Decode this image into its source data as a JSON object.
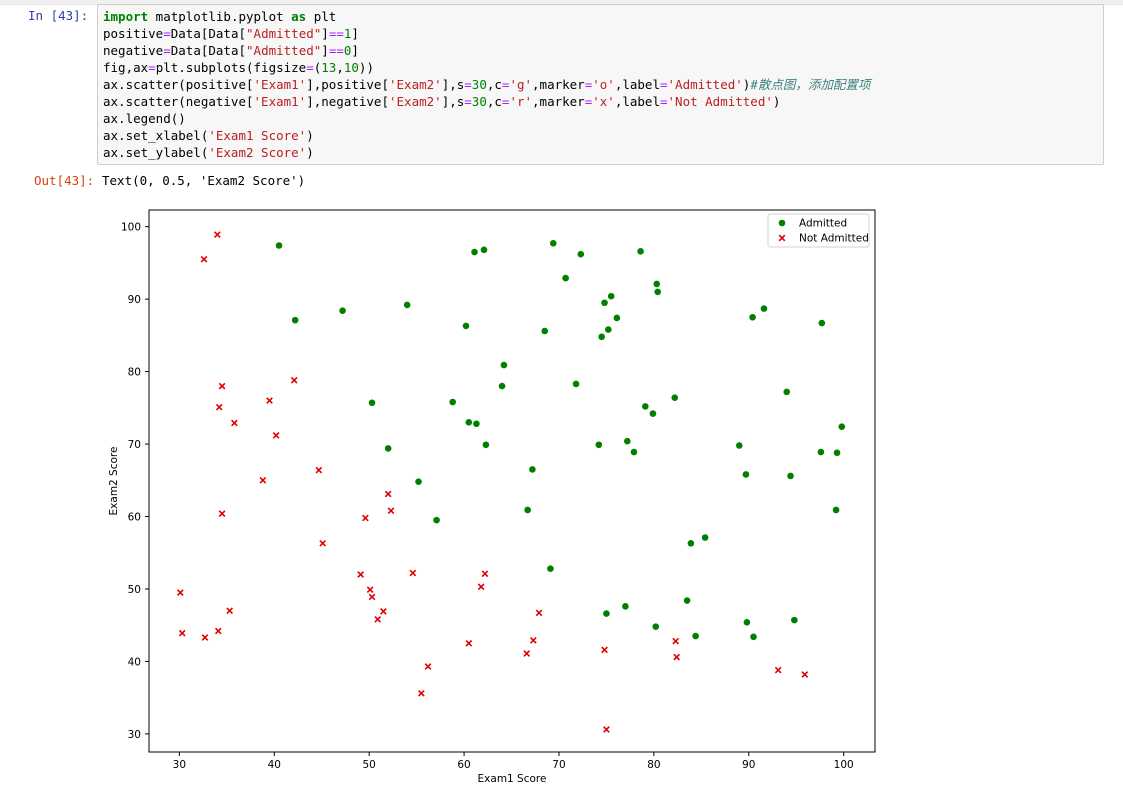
{
  "cell": {
    "in_prompt": "In  [43]:",
    "out_prompt": "Out[43]:",
    "code_lines": [
      [
        [
          "k",
          "import"
        ],
        [
          "t",
          " matplotlib.pyplot "
        ],
        [
          "k",
          "as"
        ],
        [
          "t",
          " plt"
        ]
      ],
      [
        [
          "t",
          "positive"
        ],
        [
          "o",
          "="
        ],
        [
          "t",
          "Data[Data["
        ],
        [
          "s",
          "\"Admitted\""
        ],
        [
          "t",
          "]"
        ],
        [
          "o",
          "=="
        ],
        [
          "n",
          "1"
        ],
        [
          "t",
          "]"
        ]
      ],
      [
        [
          "t",
          "negative"
        ],
        [
          "o",
          "="
        ],
        [
          "t",
          "Data[Data["
        ],
        [
          "s",
          "\"Admitted\""
        ],
        [
          "t",
          "]"
        ],
        [
          "o",
          "=="
        ],
        [
          "n",
          "0"
        ],
        [
          "t",
          "]"
        ]
      ],
      [
        [
          "t",
          "fig,ax"
        ],
        [
          "o",
          "="
        ],
        [
          "t",
          "plt.subplots(figsize"
        ],
        [
          "o",
          "="
        ],
        [
          "t",
          "("
        ],
        [
          "n",
          "13"
        ],
        [
          "t",
          ","
        ],
        [
          "n",
          "10"
        ],
        [
          "t",
          "))"
        ]
      ],
      [
        [
          "t",
          "ax.scatter(positive["
        ],
        [
          "s",
          "'Exam1'"
        ],
        [
          "t",
          "],positive["
        ],
        [
          "s",
          "'Exam2'"
        ],
        [
          "t",
          "],s"
        ],
        [
          "o",
          "="
        ],
        [
          "n",
          "30"
        ],
        [
          "t",
          ",c"
        ],
        [
          "o",
          "="
        ],
        [
          "s",
          "'g'"
        ],
        [
          "t",
          ",marker"
        ],
        [
          "o",
          "="
        ],
        [
          "s",
          "'o'"
        ],
        [
          "t",
          ",label"
        ],
        [
          "o",
          "="
        ],
        [
          "s",
          "'Admitted'"
        ],
        [
          "t",
          ")"
        ],
        [
          "c",
          "#散点图，添加配置项"
        ]
      ],
      [
        [
          "t",
          "ax.scatter(negative["
        ],
        [
          "s",
          "'Exam1'"
        ],
        [
          "t",
          "],negative["
        ],
        [
          "s",
          "'Exam2'"
        ],
        [
          "t",
          "],s"
        ],
        [
          "o",
          "="
        ],
        [
          "n",
          "30"
        ],
        [
          "t",
          ",c"
        ],
        [
          "o",
          "="
        ],
        [
          "s",
          "'r'"
        ],
        [
          "t",
          ",marker"
        ],
        [
          "o",
          "="
        ],
        [
          "s",
          "'x'"
        ],
        [
          "t",
          ",label"
        ],
        [
          "o",
          "="
        ],
        [
          "s",
          "'Not Admitted'"
        ],
        [
          "t",
          ")"
        ]
      ],
      [
        [
          "t",
          "ax.legend()"
        ]
      ],
      [
        [
          "t",
          "ax.set_xlabel("
        ],
        [
          "s",
          "'Exam1 Score'"
        ],
        [
          "t",
          ")"
        ]
      ],
      [
        [
          "t",
          "ax.set_ylabel("
        ],
        [
          "s",
          "'Exam2 Score'"
        ],
        [
          "t",
          ")"
        ]
      ]
    ],
    "output_text": "Text(0, 0.5, 'Exam2 Score')"
  },
  "colors": {
    "admitted": "#008000",
    "not_admitted": "#e00000",
    "prompt_in": "#303f9f",
    "prompt_out": "#d84315"
  },
  "chart_data": {
    "type": "scatter",
    "xlabel": "Exam1 Score",
    "ylabel": "Exam2 Score",
    "xlim": [
      26.8,
      103.3
    ],
    "ylim": [
      27.5,
      102.3
    ],
    "xticks": [
      30,
      40,
      50,
      60,
      70,
      80,
      90,
      100
    ],
    "yticks": [
      30,
      40,
      50,
      60,
      70,
      80,
      90,
      100
    ],
    "legend": {
      "placement": "upper-right",
      "entries": [
        "Admitted",
        "Not Admitted"
      ]
    },
    "series": [
      {
        "name": "Admitted",
        "marker": "o",
        "color": "g",
        "points": [
          [
            40.5,
            97.4
          ],
          [
            42.2,
            87.1
          ],
          [
            47.2,
            88.4
          ],
          [
            50.3,
            75.7
          ],
          [
            52.0,
            69.4
          ],
          [
            54.0,
            89.2
          ],
          [
            55.2,
            64.8
          ],
          [
            57.1,
            59.5
          ],
          [
            58.8,
            75.8
          ],
          [
            60.2,
            86.3
          ],
          [
            60.5,
            73.0
          ],
          [
            61.1,
            96.5
          ],
          [
            61.3,
            72.8
          ],
          [
            62.1,
            96.8
          ],
          [
            62.3,
            69.9
          ],
          [
            64.0,
            78.0
          ],
          [
            64.2,
            80.9
          ],
          [
            66.7,
            60.9
          ],
          [
            67.2,
            66.5
          ],
          [
            68.5,
            85.6
          ],
          [
            69.1,
            52.8
          ],
          [
            69.4,
            97.7
          ],
          [
            70.7,
            92.9
          ],
          [
            71.8,
            78.3
          ],
          [
            72.3,
            96.2
          ],
          [
            74.2,
            69.9
          ],
          [
            74.5,
            84.8
          ],
          [
            74.8,
            89.5
          ],
          [
            75.0,
            46.6
          ],
          [
            75.2,
            85.8
          ],
          [
            75.5,
            90.4
          ],
          [
            76.1,
            87.4
          ],
          [
            77.0,
            47.6
          ],
          [
            77.2,
            70.4
          ],
          [
            77.9,
            68.9
          ],
          [
            78.6,
            96.6
          ],
          [
            79.1,
            75.2
          ],
          [
            79.9,
            74.2
          ],
          [
            80.2,
            44.8
          ],
          [
            80.3,
            92.1
          ],
          [
            80.4,
            91.0
          ],
          [
            82.2,
            76.4
          ],
          [
            83.5,
            48.4
          ],
          [
            83.9,
            56.3
          ],
          [
            84.4,
            43.5
          ],
          [
            85.4,
            57.1
          ],
          [
            89.0,
            69.8
          ],
          [
            89.7,
            65.8
          ],
          [
            89.8,
            45.4
          ],
          [
            90.4,
            87.5
          ],
          [
            90.5,
            43.4
          ],
          [
            91.6,
            88.7
          ],
          [
            94.0,
            77.2
          ],
          [
            94.4,
            65.6
          ],
          [
            94.8,
            45.7
          ],
          [
            97.6,
            68.9
          ],
          [
            97.7,
            86.7
          ],
          [
            99.2,
            60.9
          ],
          [
            99.3,
            68.8
          ],
          [
            99.8,
            72.4
          ]
        ]
      },
      {
        "name": "Not Admitted",
        "marker": "x",
        "color": "r",
        "points": [
          [
            30.1,
            49.5
          ],
          [
            30.3,
            43.9
          ],
          [
            32.6,
            95.5
          ],
          [
            32.7,
            43.3
          ],
          [
            34.0,
            98.9
          ],
          [
            34.1,
            44.2
          ],
          [
            34.2,
            75.1
          ],
          [
            34.5,
            78.0
          ],
          [
            34.5,
            60.4
          ],
          [
            35.3,
            47.0
          ],
          [
            35.8,
            72.9
          ],
          [
            38.8,
            65.0
          ],
          [
            39.5,
            76.0
          ],
          [
            40.2,
            71.2
          ],
          [
            42.1,
            78.8
          ],
          [
            44.7,
            66.4
          ],
          [
            45.1,
            56.3
          ],
          [
            49.1,
            52.0
          ],
          [
            49.6,
            59.8
          ],
          [
            50.1,
            49.9
          ],
          [
            50.3,
            48.9
          ],
          [
            50.9,
            45.8
          ],
          [
            51.5,
            46.9
          ],
          [
            52.0,
            63.1
          ],
          [
            52.3,
            60.8
          ],
          [
            54.6,
            52.2
          ],
          [
            55.5,
            35.6
          ],
          [
            56.2,
            39.3
          ],
          [
            60.5,
            42.5
          ],
          [
            61.8,
            50.3
          ],
          [
            62.2,
            52.1
          ],
          [
            66.6,
            41.1
          ],
          [
            67.3,
            42.9
          ],
          [
            67.9,
            46.7
          ],
          [
            74.8,
            41.6
          ],
          [
            75.0,
            30.6
          ],
          [
            82.3,
            42.8
          ],
          [
            82.4,
            40.6
          ],
          [
            93.1,
            38.8
          ],
          [
            95.9,
            38.2
          ]
        ]
      }
    ]
  }
}
